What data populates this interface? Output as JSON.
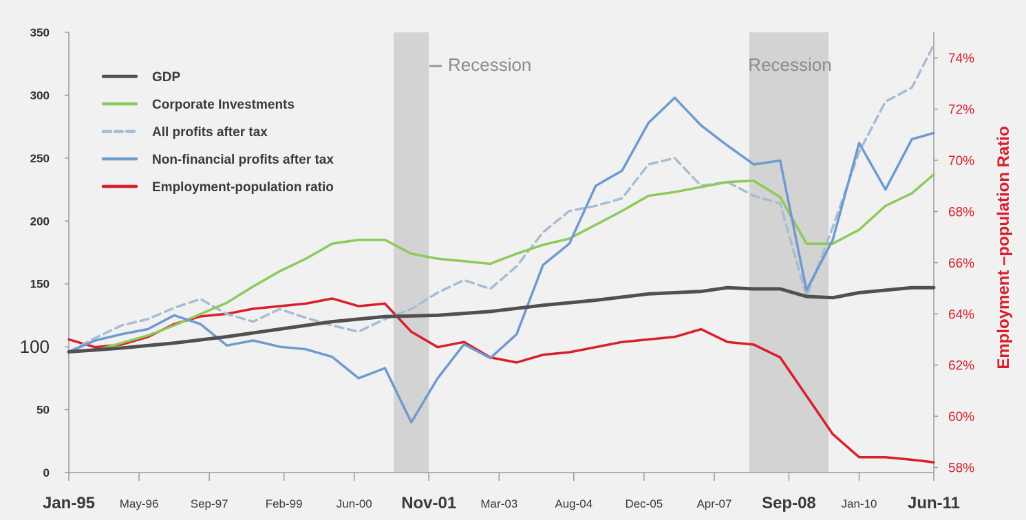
{
  "chart_data": {
    "type": "line",
    "x_ticks": [
      "Jan-95",
      "May-96",
      "Sep-97",
      "Feb-99",
      "Jun-00",
      "Nov-01",
      "Mar-03",
      "Aug-04",
      "Dec-05",
      "Apr-07",
      "Sep-08",
      "Jan-10",
      "Jun-11"
    ],
    "x_ticks_emphasized": [
      "Jan-95",
      "Nov-01",
      "Sep-08",
      "Jun-11"
    ],
    "x_range": [
      "Jan-95",
      "Jun-11"
    ],
    "y_left": {
      "ticks": [
        0,
        50,
        100,
        150,
        200,
        250,
        300,
        350
      ],
      "range": [
        0,
        350
      ],
      "emphasized_tick": 100
    },
    "y_right": {
      "label": "Employment –population Ratio",
      "ticks": [
        "58%",
        "60%",
        "62%",
        "64%",
        "66%",
        "68%",
        "70%",
        "72%",
        "74%"
      ],
      "range": [
        57.8,
        75
      ]
    },
    "shaded_regions": [
      {
        "label": "Recession",
        "start": "Mar-01",
        "end": "Nov-01"
      },
      {
        "label": "Recession",
        "start": "Dec-07",
        "end": "Jun-09"
      }
    ],
    "legend_position": "top-left",
    "series": [
      {
        "name": "GDP",
        "color": "#505050",
        "style": "solid",
        "axis": "left",
        "x": [
          "Jan-95",
          "Jan-96",
          "Jan-97",
          "Jan-98",
          "Jan-99",
          "Jan-00",
          "Jan-01",
          "Jan-02",
          "Jan-03",
          "Jan-04",
          "Jan-05",
          "Jan-06",
          "Jan-07",
          "Jul-07",
          "Jan-08",
          "Jul-08",
          "Jan-09",
          "Jul-09",
          "Jan-10",
          "Jul-10",
          "Jan-11",
          "Jun-11"
        ],
        "values": [
          96,
          99,
          103,
          108,
          114,
          120,
          124,
          125,
          128,
          133,
          137,
          142,
          144,
          147,
          146,
          146,
          140,
          139,
          143,
          145,
          147,
          147
        ]
      },
      {
        "name": "Corporate Investments",
        "color": "#8ec95a",
        "style": "solid",
        "axis": "left",
        "x": [
          "Jan-95",
          "Jul-95",
          "Jan-96",
          "Jul-96",
          "Jan-97",
          "Jul-97",
          "Jan-98",
          "Jul-98",
          "Jan-99",
          "Jul-99",
          "Jan-00",
          "Jul-00",
          "Jan-01",
          "Jul-01",
          "Jan-02",
          "Jul-02",
          "Jan-03",
          "Jul-03",
          "Jan-04",
          "Jul-04",
          "Jan-05",
          "Jul-05",
          "Jan-06",
          "Jul-06",
          "Jan-07",
          "Jul-07",
          "Jan-08",
          "Jul-08",
          "Jan-09",
          "Jul-09",
          "Jan-10",
          "Jul-10",
          "Jan-11",
          "Jun-11"
        ],
        "values": [
          96,
          97,
          103,
          109,
          117,
          126,
          135,
          148,
          160,
          170,
          182,
          185,
          185,
          174,
          170,
          168,
          166,
          174,
          181,
          186,
          197,
          208,
          220,
          223,
          227,
          231,
          232,
          219,
          182,
          182,
          193,
          212,
          222,
          237
        ]
      },
      {
        "name": "All profits after tax",
        "color": "#a8bcd2",
        "style": "dashed",
        "axis": "left",
        "x": [
          "Jan-95",
          "Jul-95",
          "Jan-96",
          "Jul-96",
          "Jan-97",
          "Jul-97",
          "Jan-98",
          "Jul-98",
          "Jan-99",
          "Jul-99",
          "Jan-00",
          "Jul-00",
          "Jan-01",
          "Jul-01",
          "Jan-02",
          "Jul-02",
          "Jan-03",
          "Jul-03",
          "Jan-04",
          "Jul-04",
          "Jan-05",
          "Jul-05",
          "Jan-06",
          "Jul-06",
          "Jan-07",
          "Jul-07",
          "Jan-08",
          "Jul-08",
          "Jan-09",
          "Jul-09",
          "Jan-10",
          "Jul-10",
          "Jan-11",
          "Jun-11"
        ],
        "values": [
          96,
          107,
          117,
          122,
          131,
          138,
          126,
          120,
          130,
          123,
          117,
          112,
          122,
          130,
          143,
          153,
          146,
          164,
          191,
          208,
          212,
          218,
          245,
          250,
          228,
          231,
          220,
          214,
          140,
          195,
          255,
          295,
          306,
          340
        ]
      },
      {
        "name": "Non-financial profits after tax",
        "color": "#6f9ad0",
        "style": "solid",
        "axis": "left",
        "x": [
          "Jan-95",
          "Jul-95",
          "Jan-96",
          "Jul-96",
          "Jan-97",
          "Jul-97",
          "Jan-98",
          "Jul-98",
          "Jan-99",
          "Jul-99",
          "Jan-00",
          "Jul-00",
          "Jan-01",
          "Jul-01",
          "Jan-02",
          "Jul-02",
          "Jan-03",
          "Jul-03",
          "Jan-04",
          "Jul-04",
          "Jan-05",
          "Jul-05",
          "Jan-06",
          "Jul-06",
          "Jan-07",
          "Jul-07",
          "Jan-08",
          "Jul-08",
          "Jan-09",
          "Jul-09",
          "Jan-10",
          "Jul-10",
          "Jan-11",
          "Jun-11"
        ],
        "values": [
          96,
          105,
          110,
          114,
          125,
          118,
          101,
          105,
          100,
          98,
          92,
          75,
          83,
          40,
          75,
          102,
          91,
          110,
          165,
          182,
          228,
          240,
          278,
          298,
          276,
          260,
          245,
          248,
          145,
          185,
          262,
          225,
          265,
          270
        ]
      },
      {
        "name": "Employment-population ratio",
        "color": "#d81f2a",
        "style": "solid",
        "axis": "right",
        "x": [
          "Jan-95",
          "Jul-95",
          "Jan-96",
          "Jul-96",
          "Jan-97",
          "Jul-97",
          "Jan-98",
          "Jul-98",
          "Jan-99",
          "Jul-99",
          "Jan-00",
          "Jul-00",
          "Jan-01",
          "Jul-01",
          "Jan-02",
          "Jul-02",
          "Jan-03",
          "Jul-03",
          "Jan-04",
          "Jul-04",
          "Jan-05",
          "Jul-05",
          "Jan-06",
          "Jul-06",
          "Jan-07",
          "Jul-07",
          "Jan-08",
          "Jul-08",
          "Jan-09",
          "Jul-09",
          "Jan-10",
          "Jul-10",
          "Jan-11",
          "Jun-11"
        ],
        "values": [
          63.0,
          62.7,
          62.8,
          63.1,
          63.6,
          63.9,
          64.0,
          64.2,
          64.3,
          64.4,
          64.6,
          64.3,
          64.4,
          63.3,
          62.7,
          62.9,
          62.3,
          62.1,
          62.4,
          62.5,
          62.7,
          62.9,
          63.0,
          63.1,
          63.4,
          62.9,
          62.8,
          62.3,
          60.8,
          59.3,
          58.4,
          58.4,
          58.3,
          58.2
        ]
      }
    ]
  }
}
